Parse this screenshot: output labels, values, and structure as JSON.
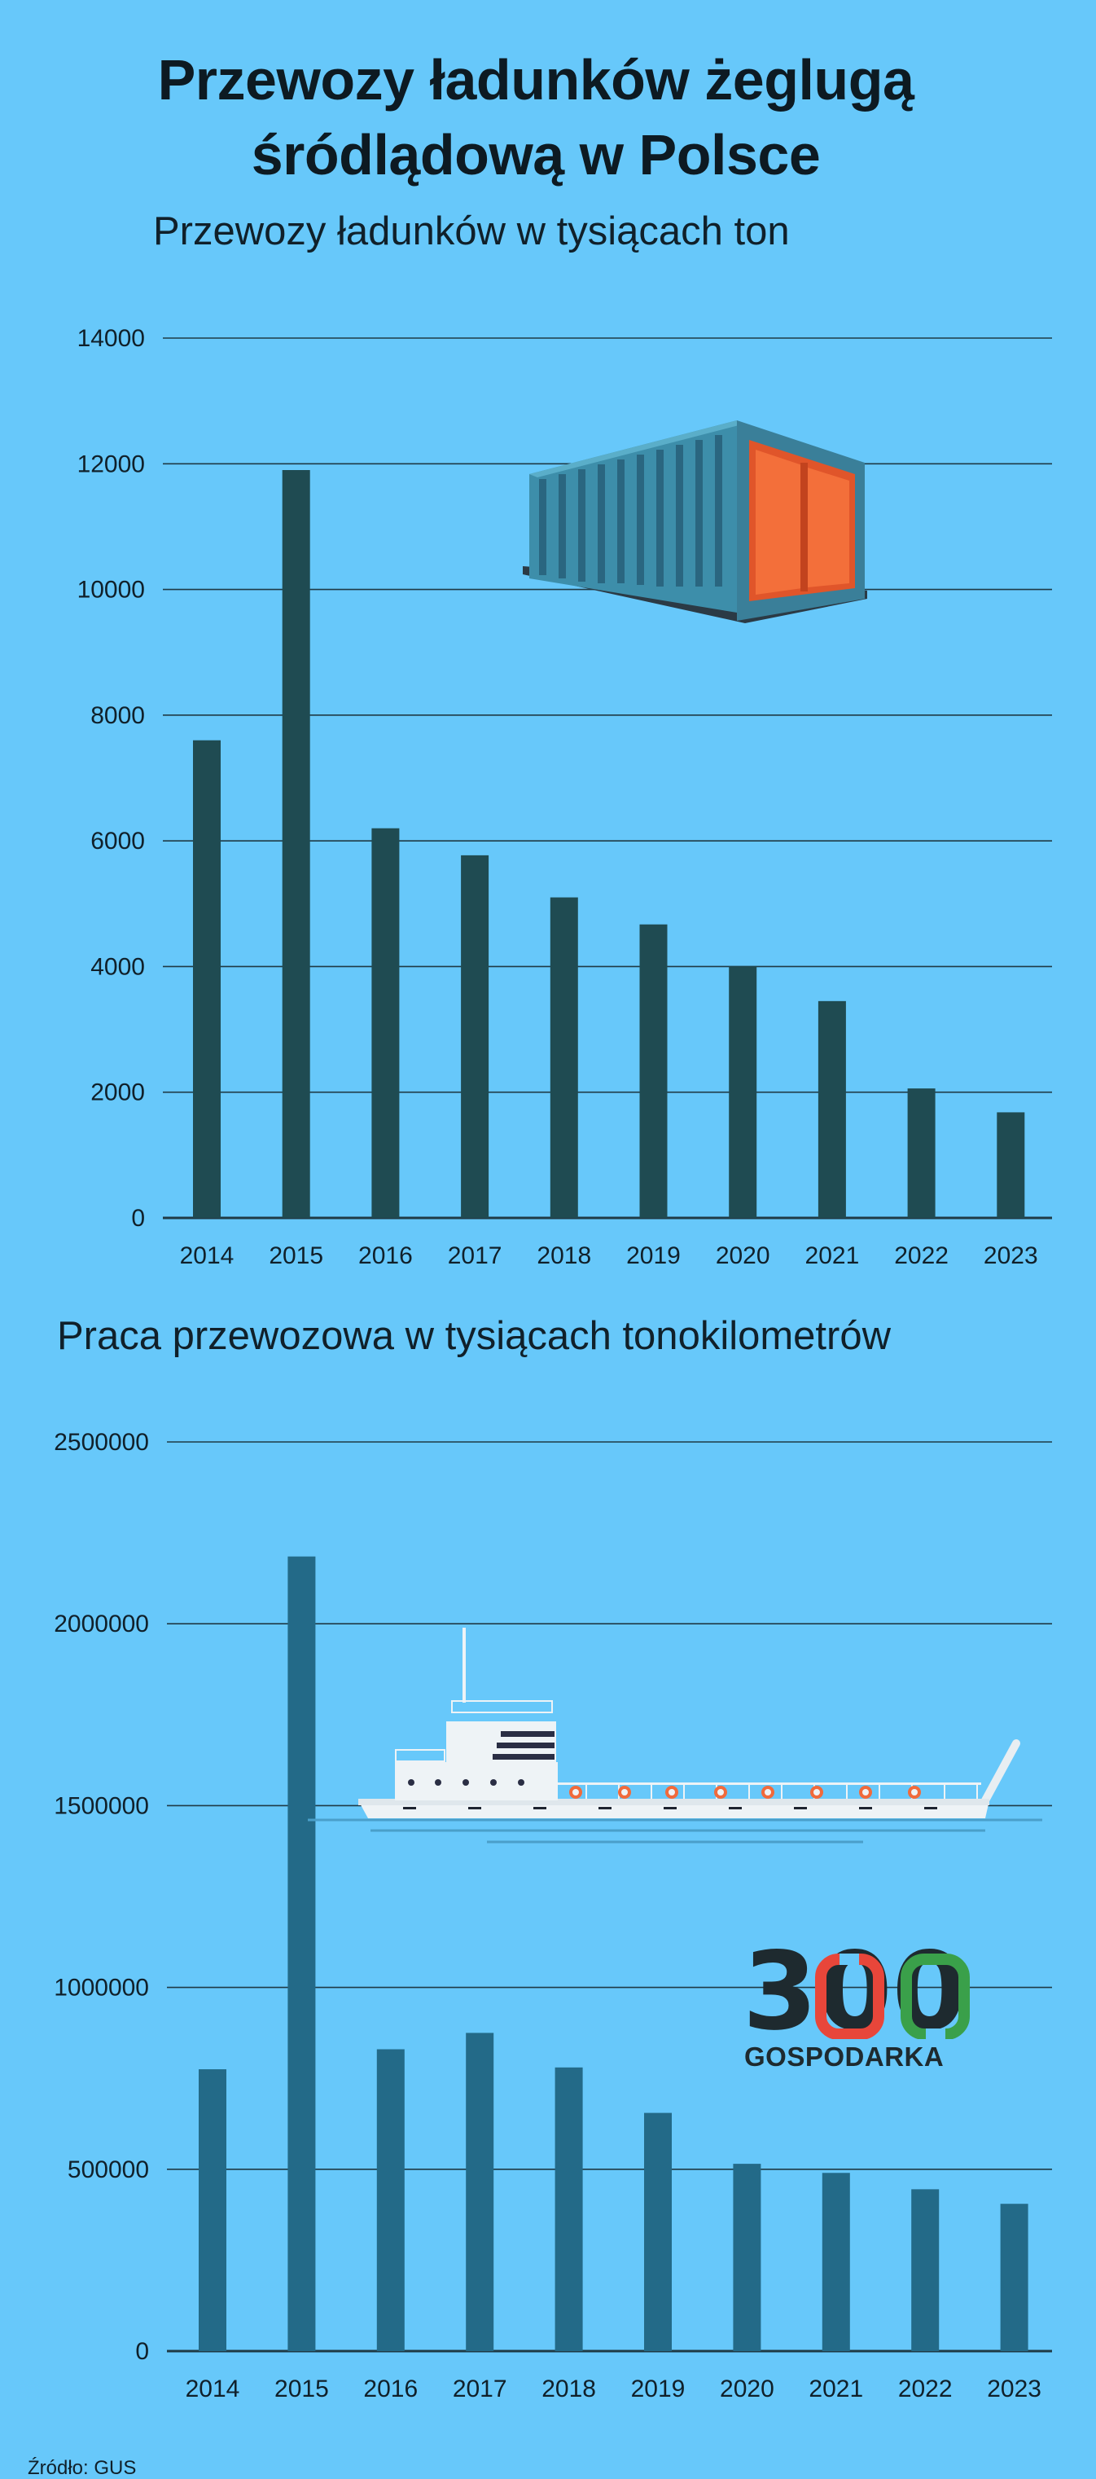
{
  "title": "Przewozy ładunków żeglugą\nśródlądową w Polsce",
  "source": "Źródło: GUS",
  "logo": {
    "number": "300",
    "text": "GOSPODARKA"
  },
  "colors": {
    "background": "#67c8fa",
    "bars1": "#1f4b52",
    "bars2": "#236a88",
    "grid": "#1f3a45"
  },
  "chart_data": [
    {
      "type": "bar",
      "title": "Przewozy ładunków w tysiącach ton",
      "categories": [
        "2014",
        "2015",
        "2016",
        "2017",
        "2018",
        "2019",
        "2020",
        "2021",
        "2022",
        "2023"
      ],
      "values": [
        7600,
        11900,
        6200,
        5770,
        5100,
        4670,
        4000,
        3450,
        2060,
        1680
      ],
      "ylim": [
        0,
        14000
      ],
      "yticks": [
        0,
        2000,
        4000,
        6000,
        8000,
        10000,
        12000,
        14000
      ],
      "grid": true,
      "xlabel": "",
      "ylabel": ""
    },
    {
      "type": "bar",
      "title": "Praca przewozowa w tysiącach tonokilometrów",
      "categories": [
        "2014",
        "2015",
        "2016",
        "2017",
        "2018",
        "2019",
        "2020",
        "2021",
        "2022",
        "2023"
      ],
      "values": [
        775000,
        2185000,
        830000,
        875000,
        780000,
        655000,
        515000,
        490000,
        445000,
        405000
      ],
      "ylim": [
        0,
        2500000
      ],
      "yticks": [
        0,
        500000,
        1000000,
        1500000,
        2000000,
        2500000
      ],
      "grid": true,
      "xlabel": "",
      "ylabel": ""
    }
  ]
}
